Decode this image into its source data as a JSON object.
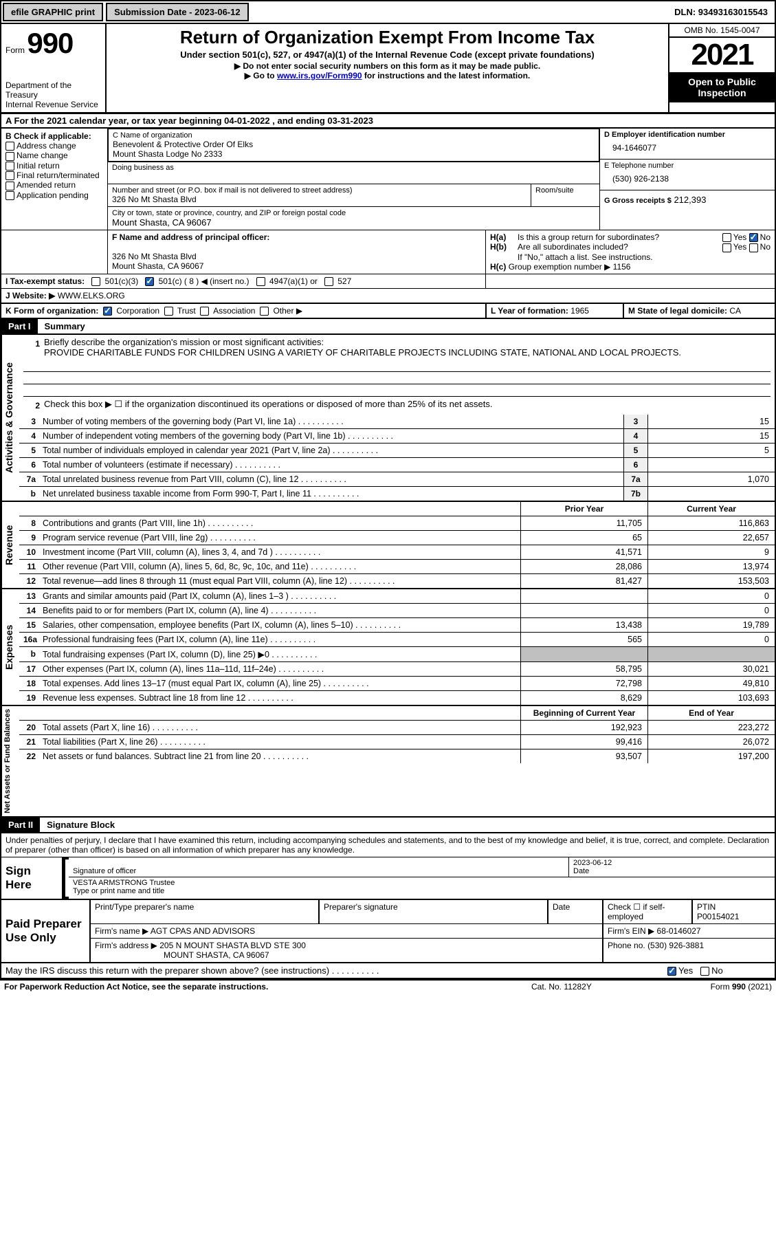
{
  "topbar": {
    "efile_label": "efile GRAPHIC print",
    "submission_label": "Submission Date - 2023-06-12",
    "dln_label": "DLN: 93493163015543"
  },
  "form_header": {
    "form_prefix": "Form",
    "form_number": "990",
    "dept1": "Department of the Treasury",
    "dept2": "Internal Revenue Service",
    "title": "Return of Organization Exempt From Income Tax",
    "subtitle": "Under section 501(c), 527, or 4947(a)(1) of the Internal Revenue Code (except private foundations)",
    "note1": "▶ Do not enter social security numbers on this form as it may be made public.",
    "note2_prefix": "▶ Go to ",
    "note2_link": "www.irs.gov/Form990",
    "note2_suffix": " for instructions and the latest information.",
    "omb": "OMB No. 1545-0047",
    "year": "2021",
    "inspection": "Open to Public Inspection"
  },
  "section_a": {
    "text_prefix": "A For the 2021 calendar year, or tax year beginning ",
    "begin": "04-01-2022",
    "mid": " , and ending ",
    "end": "03-31-2023"
  },
  "section_b": {
    "header": "B Check if applicable:",
    "items": [
      "Address change",
      "Name change",
      "Initial return",
      "Final return/terminated",
      "Amended return",
      "Application pending"
    ]
  },
  "section_c": {
    "name_label": "C Name of organization",
    "name1": "Benevolent & Protective Order Of Elks",
    "name2": "Mount Shasta Lodge No 2333",
    "dba_label": "Doing business as",
    "street_label": "Number and street (or P.O. box if mail is not delivered to street address)",
    "room_label": "Room/suite",
    "street": "326 No Mt Shasta Blvd",
    "city_label": "City or town, state or province, country, and ZIP or foreign postal code",
    "city": "Mount Shasta, CA  96067"
  },
  "section_d": {
    "label": "D Employer identification number",
    "value": "94-1646077"
  },
  "section_e": {
    "label": "E Telephone number",
    "value": "(530) 926-2138"
  },
  "section_g": {
    "label": "G Gross receipts $",
    "value": "212,393"
  },
  "section_f": {
    "label": "F Name and address of principal officer:",
    "addr1": "326 No Mt Shasta Blvd",
    "addr2": "Mount Shasta, CA  96067"
  },
  "section_h": {
    "ha": "Is this a group return for subordinates?",
    "hb": "Are all subordinates included?",
    "hb_note": "If \"No,\" attach a list. See instructions.",
    "hc": "Group exemption number ▶",
    "hc_val": "1156",
    "yes": "Yes",
    "no": "No"
  },
  "section_i": {
    "label": "I   Tax-exempt status:",
    "opts": [
      "501(c)(3)",
      "501(c) ( 8 ) ◀ (insert no.)",
      "4947(a)(1) or",
      "527"
    ]
  },
  "section_j": {
    "label": "J   Website: ▶",
    "value": "WWW.ELKS.ORG"
  },
  "section_k": {
    "label": "K Form of organization:",
    "opts": [
      "Corporation",
      "Trust",
      "Association",
      "Other ▶"
    ]
  },
  "section_l": {
    "label": "L Year of formation:",
    "value": "1965"
  },
  "section_m": {
    "label": "M State of legal domicile:",
    "value": "CA"
  },
  "part1": {
    "label": "Part I",
    "title": "Summary",
    "mission_label": "Briefly describe the organization's mission or most significant activities:",
    "mission": "PROVIDE CHARITABLE FUNDS FOR CHILDREN USING A VARIETY OF CHARITABLE PROJECTS INCLUDING STATE, NATIONAL AND LOCAL PROJECTS.",
    "line2": "Check this box ▶ ☐ if the organization discontinued its operations or disposed of more than 25% of its net assets.",
    "vert_activities": "Activities & Governance",
    "vert_revenue": "Revenue",
    "vert_expenses": "Expenses",
    "vert_net": "Net Assets or Fund Balances",
    "col_prior": "Prior Year",
    "col_current": "Current Year",
    "col_begin": "Beginning of Current Year",
    "col_end": "End of Year",
    "lines_gov": [
      {
        "num": "3",
        "desc": "Number of voting members of the governing body (Part VI, line 1a)",
        "box": "3",
        "val": "15"
      },
      {
        "num": "4",
        "desc": "Number of independent voting members of the governing body (Part VI, line 1b)",
        "box": "4",
        "val": "15"
      },
      {
        "num": "5",
        "desc": "Total number of individuals employed in calendar year 2021 (Part V, line 2a)",
        "box": "5",
        "val": "5"
      },
      {
        "num": "6",
        "desc": "Total number of volunteers (estimate if necessary)",
        "box": "6",
        "val": ""
      },
      {
        "num": "7a",
        "desc": "Total unrelated business revenue from Part VIII, column (C), line 12",
        "box": "7a",
        "val": "1,070"
      },
      {
        "num": "b",
        "desc": "Net unrelated business taxable income from Form 990-T, Part I, line 11",
        "box": "7b",
        "val": ""
      }
    ],
    "lines_rev": [
      {
        "num": "8",
        "desc": "Contributions and grants (Part VIII, line 1h)",
        "prior": "11,705",
        "curr": "116,863"
      },
      {
        "num": "9",
        "desc": "Program service revenue (Part VIII, line 2g)",
        "prior": "65",
        "curr": "22,657"
      },
      {
        "num": "10",
        "desc": "Investment income (Part VIII, column (A), lines 3, 4, and 7d )",
        "prior": "41,571",
        "curr": "9"
      },
      {
        "num": "11",
        "desc": "Other revenue (Part VIII, column (A), lines 5, 6d, 8c, 9c, 10c, and 11e)",
        "prior": "28,086",
        "curr": "13,974"
      },
      {
        "num": "12",
        "desc": "Total revenue—add lines 8 through 11 (must equal Part VIII, column (A), line 12)",
        "prior": "81,427",
        "curr": "153,503"
      }
    ],
    "lines_exp": [
      {
        "num": "13",
        "desc": "Grants and similar amounts paid (Part IX, column (A), lines 1–3 )",
        "prior": "",
        "curr": "0"
      },
      {
        "num": "14",
        "desc": "Benefits paid to or for members (Part IX, column (A), line 4)",
        "prior": "",
        "curr": "0"
      },
      {
        "num": "15",
        "desc": "Salaries, other compensation, employee benefits (Part IX, column (A), lines 5–10)",
        "prior": "13,438",
        "curr": "19,789"
      },
      {
        "num": "16a",
        "desc": "Professional fundraising fees (Part IX, column (A), line 11e)",
        "prior": "565",
        "curr": "0"
      },
      {
        "num": "b",
        "desc": "Total fundraising expenses (Part IX, column (D), line 25) ▶0",
        "prior": "GRAY",
        "curr": "GRAY"
      },
      {
        "num": "17",
        "desc": "Other expenses (Part IX, column (A), lines 11a–11d, 11f–24e)",
        "prior": "58,795",
        "curr": "30,021"
      },
      {
        "num": "18",
        "desc": "Total expenses. Add lines 13–17 (must equal Part IX, column (A), line 25)",
        "prior": "72,798",
        "curr": "49,810"
      },
      {
        "num": "19",
        "desc": "Revenue less expenses. Subtract line 18 from line 12",
        "prior": "8,629",
        "curr": "103,693"
      }
    ],
    "lines_net": [
      {
        "num": "20",
        "desc": "Total assets (Part X, line 16)",
        "prior": "192,923",
        "curr": "223,272"
      },
      {
        "num": "21",
        "desc": "Total liabilities (Part X, line 26)",
        "prior": "99,416",
        "curr": "26,072"
      },
      {
        "num": "22",
        "desc": "Net assets or fund balances. Subtract line 21 from line 20",
        "prior": "93,507",
        "curr": "197,200"
      }
    ]
  },
  "part2": {
    "label": "Part II",
    "title": "Signature Block",
    "perjury": "Under penalties of perjury, I declare that I have examined this return, including accompanying schedules and statements, and to the best of my knowledge and belief, it is true, correct, and complete. Declaration of preparer (other than officer) is based on all information of which preparer has any knowledge.",
    "sign_here": "Sign Here",
    "sig_officer": "Signature of officer",
    "sig_date": "2023-06-12",
    "date_label": "Date",
    "officer_name": "VESTA ARMSTRONG  Trustee",
    "name_title_label": "Type or print name and title",
    "paid_prep": "Paid Preparer Use Only",
    "print_name_label": "Print/Type preparer's name",
    "prep_sig_label": "Preparer's signature",
    "check_if": "Check ☐ if self-employed",
    "ptin_label": "PTIN",
    "ptin": "P00154021",
    "firm_name_label": "Firm's name    ▶",
    "firm_name": "AGT CPAS AND ADVISORS",
    "firm_ein_label": "Firm's EIN ▶",
    "firm_ein": "68-0146027",
    "firm_addr_label": "Firm's address ▶",
    "firm_addr1": "205 N MOUNT SHASTA BLVD STE 300",
    "firm_addr2": "MOUNT SHASTA, CA  96067",
    "phone_label": "Phone no.",
    "phone": "(530) 926-3881",
    "irs_discuss": "May the IRS discuss this return with the preparer shown above? (see instructions)"
  },
  "footer": {
    "paperwork": "For Paperwork Reduction Act Notice, see the separate instructions.",
    "cat": "Cat. No. 11282Y",
    "form": "Form 990 (2021)"
  }
}
